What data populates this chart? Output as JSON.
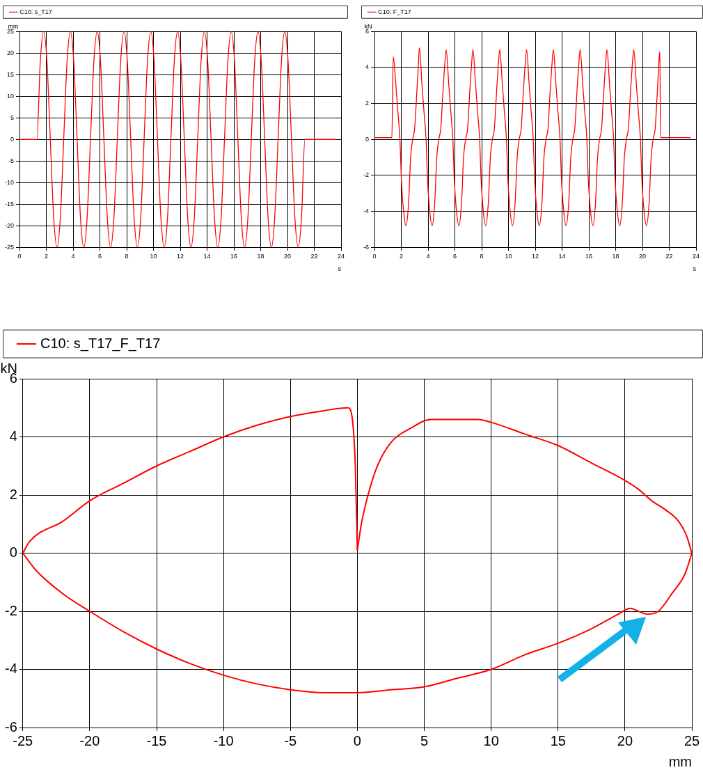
{
  "chart_data": [
    {
      "type": "line",
      "xlabel": "s",
      "ylabel": "mm",
      "legend": "top",
      "grid": true,
      "marker": "none",
      "xlim": [
        0,
        24
      ],
      "xticks": [
        0,
        2,
        4,
        6,
        8,
        10,
        12,
        14,
        16,
        18,
        20,
        22,
        24
      ],
      "ylim": [
        -25,
        25
      ],
      "yticks": [
        -25,
        -20,
        -15,
        -10,
        -5,
        0,
        5,
        10,
        15,
        20,
        25
      ],
      "series": [
        {
          "name": "C10: s_T17",
          "color": "#ff0000",
          "x": [
            0,
            1.3,
            1.55,
            1.8,
            2.05,
            2.3,
            2.55,
            2.8,
            3.05,
            3.3,
            3.55,
            3.8,
            4.05,
            4.3,
            4.55,
            4.8,
            5.05,
            5.3,
            5.55,
            5.8,
            6.05,
            6.3,
            6.55,
            6.8,
            7.05,
            7.3,
            7.55,
            7.8,
            8.05,
            8.3,
            8.55,
            8.8,
            9.05,
            9.3,
            9.55,
            9.8,
            10.05,
            10.3,
            10.55,
            10.8,
            11.05,
            11.3,
            11.55,
            11.8,
            12.05,
            12.3,
            12.55,
            12.8,
            13.05,
            13.3,
            13.55,
            13.8,
            14.05,
            14.3,
            14.55,
            14.8,
            15.05,
            15.3,
            15.55,
            15.8,
            16.05,
            16.3,
            16.55,
            16.8,
            17.05,
            17.3,
            17.55,
            17.8,
            18.05,
            18.3,
            18.55,
            18.8,
            19.05,
            19.3,
            19.55,
            19.8,
            20.05,
            20.3,
            20.55,
            20.8,
            21.05,
            21.3,
            23.6
          ],
          "values": [
            0,
            0,
            18,
            25,
            18,
            0,
            -18,
            -25,
            -18,
            0,
            18,
            25,
            18,
            0,
            -18,
            -25,
            -18,
            0,
            18,
            25,
            18,
            0,
            -18,
            -25,
            -18,
            0,
            18,
            25,
            18,
            0,
            -18,
            -25,
            -18,
            0,
            18,
            25,
            18,
            0,
            -18,
            -25,
            -18,
            0,
            18,
            25,
            18,
            0,
            -18,
            -25,
            -18,
            0,
            18,
            25,
            18,
            0,
            -18,
            -25,
            -18,
            0,
            18,
            25,
            18,
            0,
            -18,
            -25,
            -18,
            0,
            18,
            25,
            18,
            0,
            -18,
            -25,
            -18,
            0,
            18,
            25,
            18,
            0,
            -18,
            -25,
            -18,
            0,
            0
          ]
        }
      ]
    },
    {
      "type": "line",
      "xlabel": "s",
      "ylabel": "kN",
      "legend": "top",
      "grid": true,
      "marker": "none",
      "xlim": [
        0,
        24
      ],
      "xticks": [
        0,
        2,
        4,
        6,
        8,
        10,
        12,
        14,
        16,
        18,
        20,
        22,
        24
      ],
      "ylim": [
        -6,
        6
      ],
      "yticks": [
        -6,
        -4,
        -2,
        0,
        2,
        4,
        6
      ],
      "series": [
        {
          "name": "C10: F_T17",
          "color": "#ff0000",
          "x": [
            0,
            1.3,
            1.4,
            1.6,
            1.75,
            1.9,
            2.0,
            2.15,
            2.35,
            2.55,
            2.7,
            2.85,
            3.0,
            3.15,
            3.28,
            3.35,
            3.55,
            3.7,
            3.85,
            3.95,
            4.1,
            4.3,
            4.5,
            4.65,
            4.8,
            4.95,
            5.1,
            5.25,
            5.35,
            5.55,
            5.7,
            5.85,
            5.95,
            6.1,
            6.3,
            6.5,
            6.65,
            6.8,
            6.95,
            7.1,
            7.25,
            7.35,
            7.55,
            7.7,
            7.85,
            7.95,
            8.1,
            8.3,
            8.5,
            8.65,
            8.8,
            8.95,
            9.1,
            9.25,
            9.35,
            9.55,
            9.7,
            9.85,
            9.95,
            10.1,
            10.3,
            10.5,
            10.65,
            10.8,
            10.95,
            11.1,
            11.25,
            11.35,
            11.55,
            11.7,
            11.85,
            11.95,
            12.1,
            12.3,
            12.5,
            12.65,
            12.8,
            12.95,
            13.1,
            13.25,
            13.35,
            13.55,
            13.7,
            13.85,
            13.95,
            14.1,
            14.3,
            14.5,
            14.65,
            14.8,
            14.95,
            15.1,
            15.25,
            15.35,
            15.55,
            15.7,
            15.85,
            15.95,
            16.1,
            16.3,
            16.5,
            16.65,
            16.8,
            16.95,
            17.1,
            17.25,
            17.35,
            17.55,
            17.7,
            17.85,
            17.95,
            18.1,
            18.3,
            18.5,
            18.65,
            18.8,
            18.95,
            19.1,
            19.25,
            19.35,
            19.55,
            19.7,
            19.85,
            19.95,
            20.1,
            20.3,
            20.5,
            20.65,
            20.8,
            20.95,
            21.1,
            21.22,
            21.3,
            21.35,
            23.6
          ],
          "values": [
            0.1,
            0.1,
            4.6,
            3,
            1.5,
            0,
            -2.1,
            -3.8,
            -4.8,
            -3.5,
            -1,
            0,
            0.6,
            2.5,
            4.2,
            5.1,
            3,
            1.5,
            0,
            -2.1,
            -3.8,
            -4.8,
            -3.5,
            -1,
            0,
            0.6,
            2.5,
            4.2,
            5.0,
            3,
            1.5,
            0,
            -2.1,
            -3.8,
            -4.8,
            -3.5,
            -1,
            0,
            0.6,
            2.5,
            4.2,
            5.0,
            3,
            1.5,
            0,
            -2.1,
            -3.8,
            -4.8,
            -3.5,
            -1,
            0,
            0.6,
            2.5,
            4.2,
            5.0,
            3,
            1.5,
            0,
            -2.1,
            -3.8,
            -4.8,
            -3.5,
            -1,
            0,
            0.6,
            2.5,
            4.2,
            5.0,
            3,
            1.5,
            0,
            -2.1,
            -3.8,
            -4.8,
            -3.5,
            -1,
            0,
            0.6,
            2.5,
            4.2,
            5.0,
            3,
            1.5,
            0,
            -2.1,
            -3.8,
            -4.8,
            -3.5,
            -1,
            0,
            0.6,
            2.5,
            4.2,
            5.0,
            3,
            1.5,
            0,
            -2.1,
            -3.8,
            -4.8,
            -3.5,
            -1,
            0,
            0.6,
            2.5,
            4.2,
            5.0,
            3,
            1.5,
            0,
            -2.1,
            -3.8,
            -4.8,
            -3.5,
            -1,
            0,
            0.6,
            2.5,
            4.2,
            5.0,
            3,
            1.5,
            0,
            -2.1,
            -3.8,
            -4.8,
            -3.5,
            -1,
            0,
            0.6,
            2.5,
            4.2,
            4.9,
            0.1,
            0.1
          ]
        }
      ]
    },
    {
      "type": "line",
      "xlabel": "mm",
      "ylabel": "kN",
      "legend": "top",
      "grid": true,
      "marker": "none",
      "xlim": [
        -25,
        25
      ],
      "xticks": [
        -25,
        -20,
        -15,
        -10,
        -5,
        0,
        5,
        10,
        15,
        20,
        25
      ],
      "ylim": [
        -6,
        6
      ],
      "yticks": [
        -6,
        -4,
        -2,
        0,
        2,
        4,
        6
      ],
      "series": [
        {
          "name": "C10: s_T17_F_T17",
          "color": "#ff0000",
          "x": [
            0,
            0.3,
            0.8,
            1.5,
            2.5,
            4,
            5.5,
            7,
            9,
            10,
            12.5,
            15,
            17.5,
            20,
            21,
            22,
            23,
            24,
            24.6,
            25
          ],
          "values": [
            0.1,
            1,
            2,
            3,
            3.8,
            4.3,
            4.6,
            4.6,
            4.6,
            4.5,
            4.1,
            3.7,
            3.1,
            2.5,
            2.2,
            1.8,
            1.5,
            1.1,
            0.6,
            0
          ]
        },
        {
          "color": "#ff0000",
          "x": [
            -25,
            -24,
            -22,
            -20,
            -17.5,
            -15,
            -12.5,
            -10,
            -7.5,
            -5,
            -2.5,
            0,
            2.5,
            5,
            7.5,
            10,
            12.5,
            15,
            17.5,
            19.5,
            20.4,
            21,
            21.7,
            22.5,
            23.5,
            24.5,
            25
          ],
          "values": [
            0,
            -0.6,
            -1.4,
            -2.0,
            -2.7,
            -3.3,
            -3.8,
            -4.2,
            -4.5,
            -4.7,
            -4.8,
            -4.8,
            -4.7,
            -4.6,
            -4.3,
            -4.0,
            -3.5,
            -3.1,
            -2.6,
            -2.1,
            -1.9,
            -2.0,
            -2.1,
            -2.0,
            -1.4,
            -0.7,
            0
          ]
        },
        {
          "color": "#ff0000",
          "x": [
            -25,
            -24.5,
            -22,
            -20,
            -17.5,
            -15,
            -12.5,
            -10,
            -7.5,
            -5,
            -2.5,
            -0.7,
            -0.4,
            -0.15,
            0
          ],
          "values": [
            0,
            0.4,
            1.1,
            1.8,
            2.4,
            3.0,
            3.5,
            4.0,
            4.4,
            4.7,
            4.9,
            5.0,
            4.7,
            3,
            0.1
          ]
        }
      ]
    }
  ]
}
